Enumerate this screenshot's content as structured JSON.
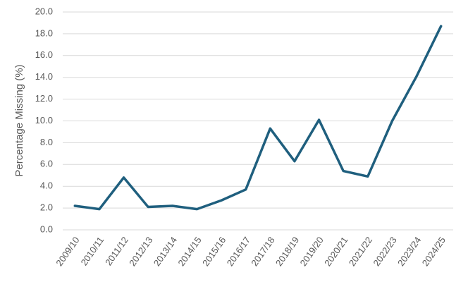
{
  "chart_data": {
    "type": "line",
    "y_label": "Percentage Missing (%)",
    "categories": [
      "2009/10",
      "2010/11",
      "2011/12",
      "2012/13",
      "2013/14",
      "2014/15",
      "2015/16",
      "2016/17",
      "2017/18",
      "2018/19",
      "2019/20",
      "2020/21",
      "2021/22",
      "2022/23",
      "2023/24",
      "2024/25"
    ],
    "values": [
      2.2,
      1.9,
      4.8,
      2.1,
      2.2,
      1.9,
      2.7,
      3.7,
      9.3,
      6.3,
      10.1,
      5.4,
      4.9,
      10.0,
      14.1,
      18.7
    ],
    "color": "#1f5f7e",
    "ylim": [
      0,
      20
    ],
    "yticks": [
      {
        "value": 0,
        "label": "0.0"
      },
      {
        "value": 2,
        "label": "2.0"
      },
      {
        "value": 4,
        "label": "4.0"
      },
      {
        "value": 6,
        "label": "6.0"
      },
      {
        "value": 8,
        "label": "8.0"
      },
      {
        "value": 10,
        "label": "10.0"
      },
      {
        "value": 12,
        "label": "12.0"
      },
      {
        "value": 14,
        "label": "14.0"
      },
      {
        "value": 16,
        "label": "16.0"
      },
      {
        "value": 18,
        "label": "18.0"
      },
      {
        "value": 20,
        "label": "20.0"
      }
    ],
    "grid": true
  }
}
